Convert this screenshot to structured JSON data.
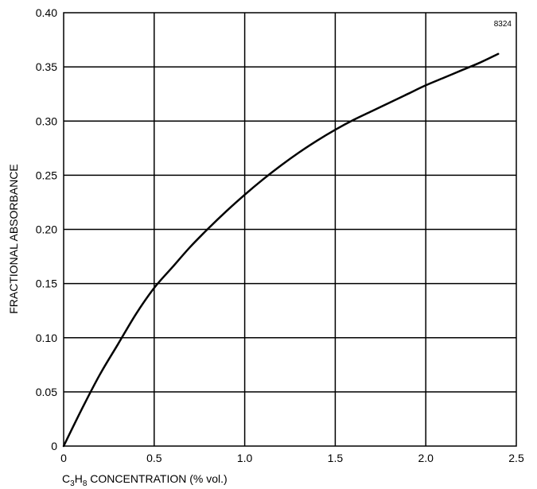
{
  "chart_data": {
    "type": "line",
    "title": "",
    "figure_code": "8324",
    "xlabel": {
      "prefix": "C",
      "sub1": "3",
      "mid": "H",
      "sub2": "8",
      "suffix": " CONCENTRATION (% vol.)"
    },
    "ylabel": "FRACTIONAL  ABSORBANCE",
    "xlim": [
      0,
      2.5
    ],
    "ylim": [
      0,
      0.4
    ],
    "grid": true,
    "x_ticks": [
      0,
      0.5,
      1.0,
      1.5,
      2.0,
      2.5
    ],
    "x_tick_labels": [
      "0",
      "0.5",
      "1.0",
      "1.5",
      "2.0",
      "2.5"
    ],
    "y_ticks": [
      0,
      0.05,
      0.1,
      0.15,
      0.2,
      0.25,
      0.3,
      0.35,
      0.4
    ],
    "y_tick_labels": [
      "0",
      "0.05",
      "0.10",
      "0.15",
      "0.20",
      "0.25",
      "0.30",
      "0.35",
      "0.40"
    ],
    "series": [
      {
        "x": [
          0,
          0.1,
          0.2,
          0.3,
          0.4,
          0.5,
          0.6,
          0.7,
          0.8,
          0.9,
          1.0,
          1.1,
          1.2,
          1.3,
          1.4,
          1.5,
          1.6,
          1.7,
          1.8,
          1.9,
          2.0,
          2.1,
          2.2,
          2.3,
          2.4
        ],
        "y": [
          0,
          0.034,
          0.066,
          0.094,
          0.122,
          0.146,
          0.165,
          0.184,
          0.201,
          0.217,
          0.232,
          0.246,
          0.259,
          0.271,
          0.282,
          0.292,
          0.301,
          0.309,
          0.317,
          0.325,
          0.333,
          0.34,
          0.347,
          0.354,
          0.362
        ],
        "color": "#000000"
      }
    ]
  }
}
